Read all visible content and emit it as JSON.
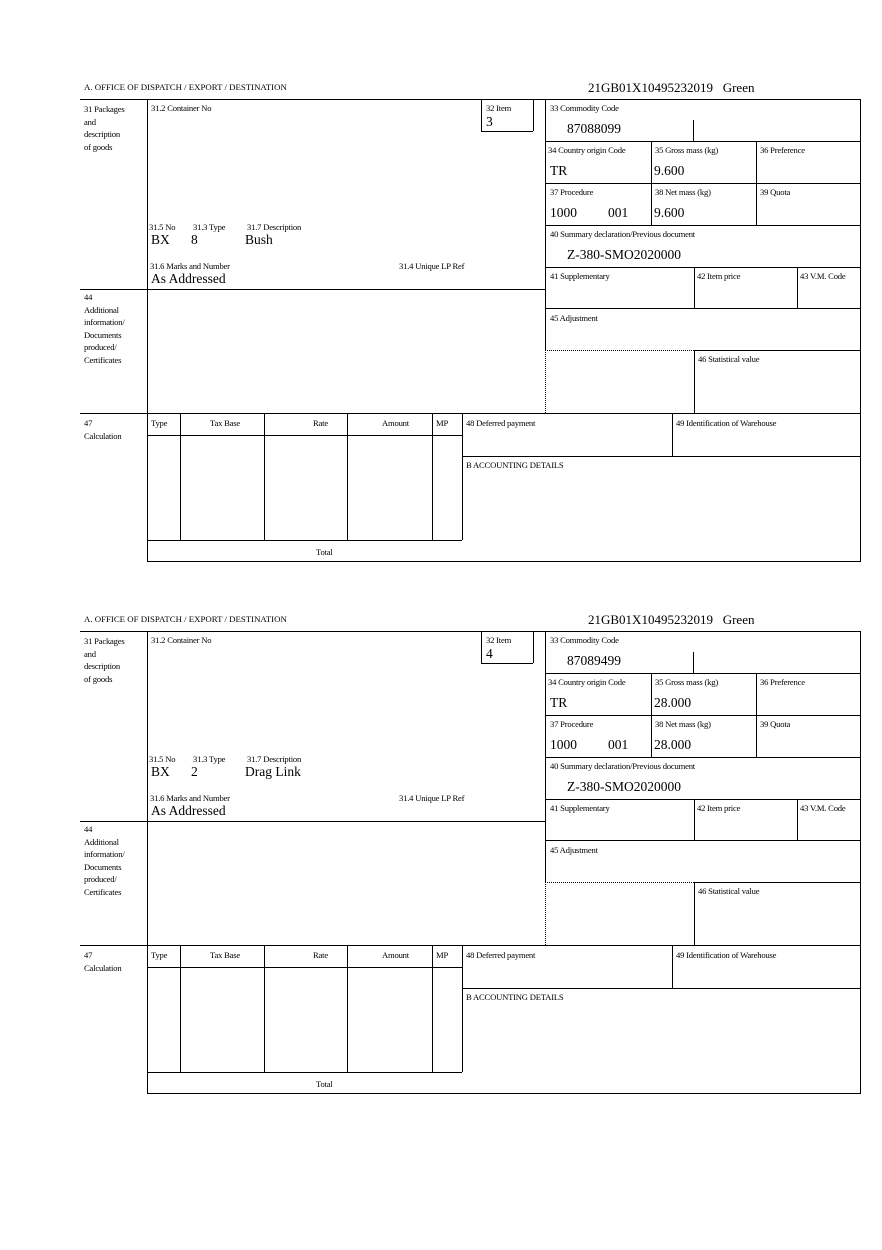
{
  "labels": {
    "office": "A.  OFFICE OF DISPATCH / EXPORT / DESTINATION",
    "box31": [
      "31 Packages",
      "and",
      "description",
      "of goods"
    ],
    "container_no": "31.2 Container No",
    "item": "32 Item",
    "no": "31.5 No",
    "type": "31.3 Type",
    "description": "31.7 Description",
    "marks": "31.6 Marks and Number",
    "unique_lp": "31.4 Unique LP Ref",
    "commodity_code": "33 Commodity Code",
    "country_origin": "34 Country origin Code",
    "gross_mass": "35 Gross mass (kg)",
    "preference": "36 Preference",
    "procedure": "37 Procedure",
    "net_mass": "38 Net mass (kg)",
    "quota": "39 Quota",
    "summary_decl": "40 Summary declaration/Previous document",
    "supplementary": "41 Supplementary",
    "item_price": "42 Item price",
    "vm_code": "43 V.M. Code",
    "adjustment": "45 Adjustment",
    "statistical_value": "46 Statistical value",
    "box44": [
      "44",
      "Additional",
      "information/",
      "Documents",
      "produced/",
      "Certificates"
    ],
    "box47": [
      "47",
      "Calculation"
    ],
    "calc_headers": [
      "Type",
      "Tax Base",
      "Rate",
      "Amount",
      "MP"
    ],
    "deferred_payment": "48 Deferred payment",
    "warehouse": "49 Identification of Warehouse",
    "accounting": "B ACCOUNTING DETAILS",
    "total": "Total"
  },
  "forms": [
    {
      "reference": "21GB01X10495232019",
      "route": "Green",
      "item": "3",
      "package_kind": "BX",
      "package_count": "8",
      "description": "Bush",
      "marks": "As Addressed",
      "commodity_code": "87088099",
      "country_origin": "TR",
      "gross_mass": "9.600",
      "procedure": "1000",
      "procedure_additional": "001",
      "net_mass": "9.600",
      "previous_document": "Z-380-SMO2020000"
    },
    {
      "reference": "21GB01X10495232019",
      "route": "Green",
      "item": "4",
      "package_kind": "BX",
      "package_count": "2",
      "description": "Drag Link",
      "marks": "As Addressed",
      "commodity_code": "87089499",
      "country_origin": "TR",
      "gross_mass": "28.000",
      "procedure": "1000",
      "procedure_additional": "001",
      "net_mass": "28.000",
      "previous_document": "Z-380-SMO2020000"
    }
  ]
}
